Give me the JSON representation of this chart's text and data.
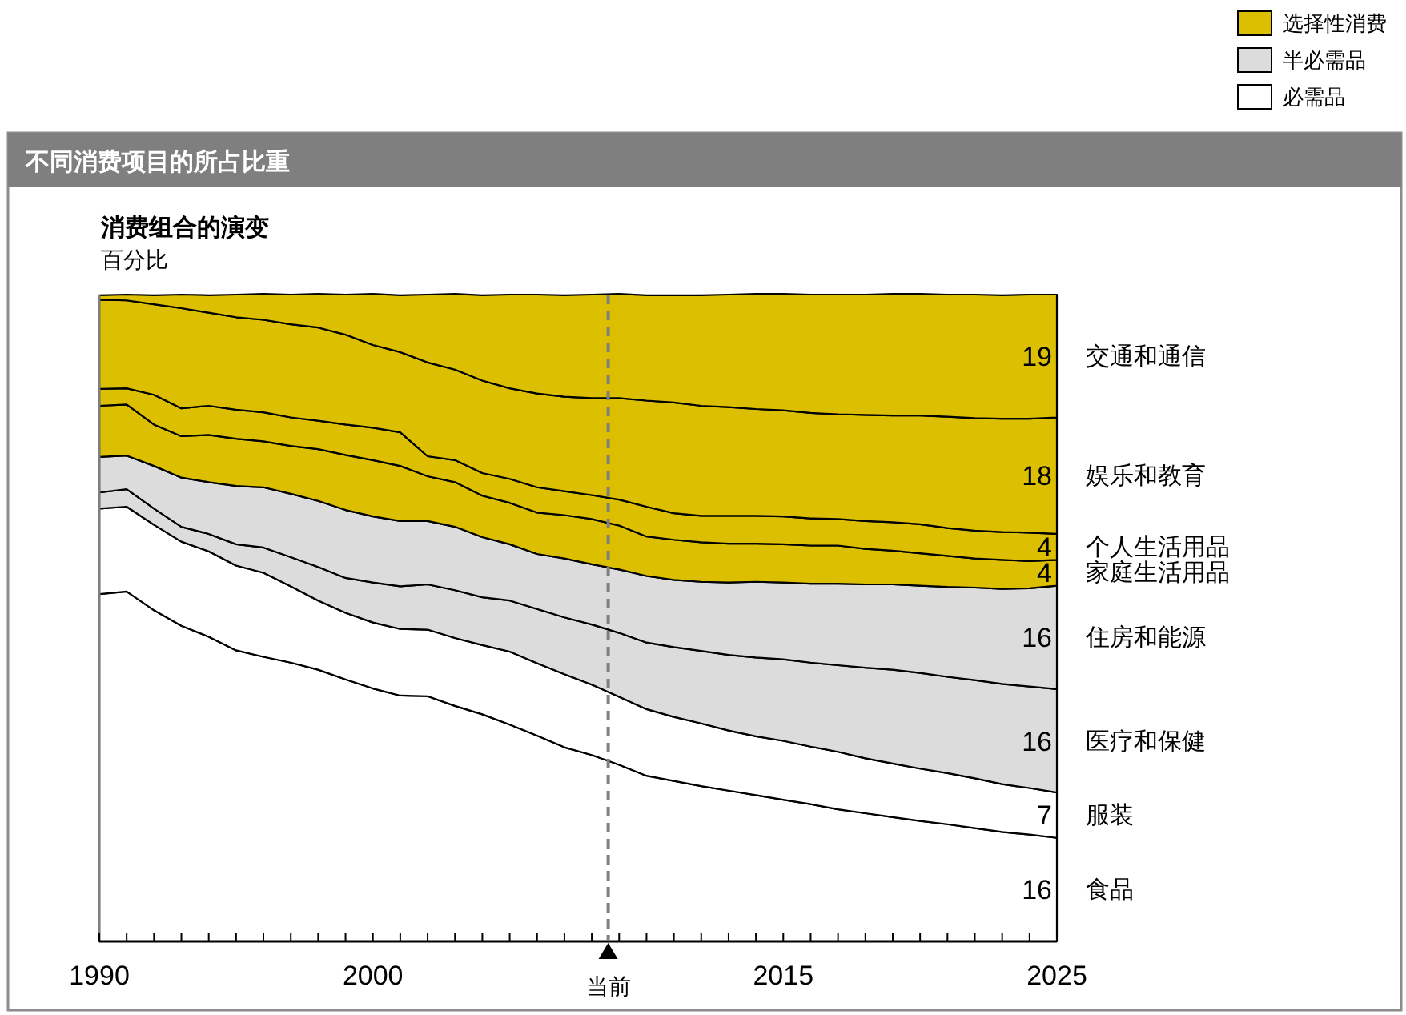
{
  "chart_data": {
    "type": "area",
    "stacked": true,
    "title": "不同消费项目的所占比重",
    "subtitle": "消费组合的演变",
    "ylabel": "百分比",
    "annotations": [
      "选择性消费",
      "半必需品",
      "必需品"
    ],
    "x": [
      1990,
      1991,
      1992,
      1993,
      1994,
      1995,
      1996,
      1997,
      1998,
      1999,
      2000,
      2001,
      2002,
      2003,
      2004,
      2005,
      2006,
      2007,
      2008,
      2009,
      2010,
      2011,
      2012,
      2013,
      2014,
      2015,
      2016,
      2017,
      2018,
      2019,
      2020,
      2021,
      2022,
      2023,
      2024,
      2025
    ],
    "xlim": [
      1990,
      2025
    ],
    "xticks": [
      1990,
      {
        "value": 1991,
        "label": null
      },
      {
        "value": 1992,
        "label": null
      },
      {
        "value": 1993,
        "label": null
      },
      {
        "value": 1994,
        "label": null
      },
      {
        "value": 1995,
        "label": null
      },
      {
        "value": 1996,
        "label": null
      },
      {
        "value": 1997,
        "label": null
      },
      {
        "value": 1998,
        "label": null
      },
      {
        "value": 1999,
        "label": null
      },
      2000,
      {
        "value": 2001,
        "label": null
      },
      {
        "value": 2002,
        "label": null
      },
      {
        "value": 2003,
        "label": null
      },
      {
        "value": 2004,
        "label": null
      },
      {
        "value": 2005,
        "label": null
      },
      {
        "value": 2006,
        "label": null
      },
      {
        "value": 2007,
        "label": null
      },
      {
        "value": 2008,
        "label": null
      },
      {
        "value": 2009,
        "label": null
      },
      {
        "value": 2010,
        "label": null
      },
      {
        "value": 2011,
        "label": null
      },
      {
        "value": 2012,
        "label": null
      },
      {
        "value": 2013,
        "label": null
      },
      {
        "value": 2014,
        "label": null
      },
      2015,
      {
        "value": 2016,
        "label": null
      },
      {
        "value": 2017,
        "label": null
      },
      {
        "value": 2018,
        "label": null
      },
      {
        "value": 2019,
        "label": null
      },
      {
        "value": 2020,
        "label": null
      },
      {
        "value": 2021,
        "label": null
      },
      {
        "value": 2022,
        "label": null
      },
      {
        "value": 2023,
        "label": null
      },
      {
        "value": 2024,
        "label": null
      },
      2025
    ],
    "ylim": [
      0,
      100
    ],
    "tick_labels": "x",
    "ref_lines": [
      {
        "axis": "x",
        "value": 2008.6,
        "label": "当前",
        "color": "#7f7f7f",
        "line_style": "dashed"
      }
    ],
    "series": [
      {
        "name": "食品",
        "color": "#ffffff",
        "values": [
          53.7,
          54.1,
          51.2,
          48.8,
          47.1,
          45.0,
          44.0,
          43.1,
          42.0,
          40.5,
          39.1,
          38.0,
          37.9,
          36.4,
          35.1,
          33.5,
          31.8,
          30.0,
          28.8,
          27.3,
          25.6,
          24.8,
          24.0,
          23.3,
          22.6,
          21.9,
          21.2,
          20.4,
          19.8,
          19.2,
          18.6,
          18.1,
          17.5,
          16.9,
          16.5,
          16
        ],
        "value_labels": [
          null,
          null,
          null,
          null,
          null,
          null,
          null,
          null,
          null,
          null,
          null,
          null,
          null,
          null,
          null,
          null,
          null,
          null,
          null,
          null,
          null,
          null,
          null,
          null,
          null,
          null,
          null,
          null,
          null,
          null,
          null,
          null,
          null,
          null,
          null,
          "16"
        ]
      },
      {
        "name": "服装",
        "color": "#ffffff",
        "values": [
          13.2,
          13.1,
          13.2,
          13.0,
          13.2,
          13.1,
          13.0,
          11.8,
          10.7,
          10.3,
          10.2,
          10.3,
          10.3,
          10.5,
          10.7,
          11.3,
          11.2,
          11.3,
          10.9,
          10.5,
          10.3,
          9.9,
          9.7,
          9.3,
          9.1,
          9.1,
          8.9,
          8.9,
          8.5,
          8.3,
          8.1,
          7.9,
          7.7,
          7.4,
          7.2,
          7
        ],
        "value_labels": [
          null,
          null,
          null,
          null,
          null,
          null,
          null,
          null,
          null,
          null,
          null,
          null,
          null,
          null,
          null,
          null,
          null,
          null,
          null,
          null,
          null,
          null,
          null,
          null,
          null,
          null,
          null,
          null,
          null,
          null,
          null,
          null,
          null,
          null,
          null,
          "7"
        ]
      },
      {
        "name": "医疗和保健",
        "color": "#dcdcdc",
        "values": [
          2.5,
          2.7,
          2.5,
          2.3,
          2.7,
          3.3,
          3.9,
          4.5,
          5.2,
          5.4,
          6.2,
          6.6,
          7.0,
          7.4,
          7.4,
          7.9,
          8.4,
          8.8,
          9.3,
          9.9,
          10.3,
          10.8,
          11.2,
          11.7,
          12.2,
          12.6,
          13.0,
          13.4,
          14.0,
          14.5,
          14.8,
          14.9,
          15.2,
          15.5,
          15.7,
          16
        ],
        "value_labels": [
          null,
          null,
          null,
          null,
          null,
          null,
          null,
          null,
          null,
          null,
          null,
          null,
          null,
          null,
          null,
          null,
          null,
          null,
          null,
          null,
          null,
          null,
          null,
          null,
          null,
          null,
          null,
          null,
          null,
          null,
          null,
          null,
          null,
          null,
          null,
          "16"
        ]
      },
      {
        "name": "住房和能源",
        "color": "#dcdcdc",
        "values": [
          5.5,
          5.2,
          6.6,
          7.6,
          8.0,
          9.0,
          9.3,
          9.8,
          10.2,
          10.5,
          10.2,
          10.1,
          9.8,
          9.8,
          9.3,
          8.7,
          8.5,
          9.1,
          9.3,
          9.8,
          10.3,
          10.4,
          10.7,
          11.2,
          11.7,
          11.9,
          12.2,
          12.6,
          12.9,
          13.2,
          13.5,
          13.9,
          14.3,
          14.7,
          15.2,
          16
        ],
        "value_labels": [
          null,
          null,
          null,
          null,
          null,
          null,
          null,
          null,
          null,
          null,
          null,
          null,
          null,
          null,
          null,
          null,
          null,
          null,
          null,
          null,
          null,
          null,
          null,
          null,
          null,
          null,
          null,
          null,
          null,
          null,
          null,
          null,
          null,
          null,
          null,
          "16"
        ]
      },
      {
        "name": "家庭生活用品",
        "color": "#dbbf00",
        "values": [
          7.9,
          7.9,
          6.4,
          6.4,
          7.3,
          7.3,
          7.1,
          7.4,
          8.0,
          8.5,
          8.7,
          8.5,
          6.9,
          6.9,
          6.4,
          6.4,
          6.4,
          6.7,
          7.0,
          6.8,
          6.1,
          6.2,
          6.1,
          6.0,
          5.9,
          5.9,
          5.9,
          5.9,
          5.5,
          5.2,
          5.0,
          4.8,
          4.5,
          4.5,
          4.2,
          4
        ],
        "value_labels": [
          null,
          null,
          null,
          null,
          null,
          null,
          null,
          null,
          null,
          null,
          null,
          null,
          null,
          null,
          null,
          null,
          null,
          null,
          null,
          null,
          null,
          null,
          null,
          null,
          null,
          null,
          null,
          null,
          null,
          null,
          null,
          null,
          null,
          null,
          null,
          "4"
        ]
      },
      {
        "name": "个人生活用品",
        "color": "#dbbf00",
        "values": [
          2.6,
          2.5,
          4.6,
          4.3,
          4.5,
          4.5,
          4.5,
          4.4,
          4.4,
          4.7,
          5.0,
          5.2,
          3.1,
          3.4,
          3.5,
          3.7,
          3.9,
          3.7,
          3.7,
          4.0,
          4.6,
          4.1,
          4.1,
          4.3,
          4.3,
          4.3,
          4.2,
          4.1,
          4.3,
          4.4,
          4.5,
          4.3,
          4.3,
          4.3,
          4.4,
          4
        ],
        "value_labels": [
          null,
          null,
          null,
          null,
          null,
          null,
          null,
          null,
          null,
          null,
          null,
          null,
          null,
          null,
          null,
          null,
          null,
          null,
          null,
          null,
          null,
          null,
          null,
          null,
          null,
          null,
          null,
          null,
          null,
          null,
          null,
          null,
          null,
          null,
          null,
          "4"
        ]
      },
      {
        "name": "娱乐和教育",
        "color": "#dbbf00",
        "values": [
          13.8,
          13.6,
          14.0,
          15.5,
          14.4,
          14.3,
          14.3,
          14.4,
          14.4,
          13.9,
          12.8,
          12.4,
          14.5,
          14.0,
          14.3,
          14.0,
          14.5,
          14.6,
          15.0,
          15.7,
          16.4,
          17.1,
          17.0,
          16.8,
          16.5,
          16.4,
          16.3,
          16.2,
          16.4,
          16.5,
          16.8,
          17.2,
          17.4,
          17.5,
          17.6,
          18
        ],
        "value_labels": [
          null,
          null,
          null,
          null,
          null,
          null,
          null,
          null,
          null,
          null,
          null,
          null,
          null,
          null,
          null,
          null,
          null,
          null,
          null,
          null,
          null,
          null,
          null,
          null,
          null,
          null,
          null,
          null,
          null,
          null,
          null,
          null,
          null,
          null,
          null,
          "18"
        ]
      },
      {
        "name": "交通和通信",
        "color": "#dbbf00",
        "values": [
          0.7,
          0.9,
          1.4,
          2.1,
          2.7,
          3.5,
          4.0,
          4.6,
          5.2,
          6.2,
          7.9,
          8.8,
          10.5,
          11.7,
          13.2,
          14.5,
          15.3,
          15.7,
          16.0,
          16.1,
          16.3,
          16.6,
          17.1,
          17.4,
          17.8,
          18.0,
          18.3,
          18.5,
          18.6,
          18.8,
          18.8,
          18.9,
          19.1,
          19.1,
          19.2,
          19
        ],
        "value_labels": [
          null,
          null,
          null,
          null,
          null,
          null,
          null,
          null,
          null,
          null,
          null,
          null,
          null,
          null,
          null,
          null,
          null,
          null,
          null,
          null,
          null,
          null,
          null,
          null,
          null,
          null,
          null,
          null,
          null,
          null,
          null,
          null,
          null,
          null,
          null,
          "19"
        ]
      }
    ]
  }
}
